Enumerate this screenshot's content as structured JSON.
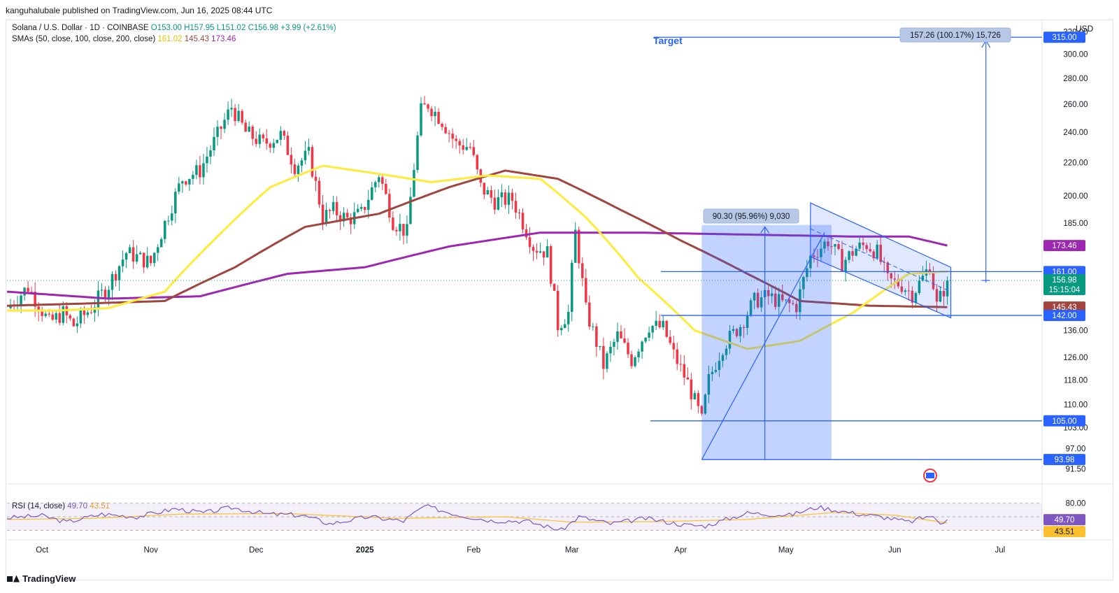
{
  "publisher": "kanguhalubale published on TradingView.com, Jun 16, 2025 08:44 UTC",
  "currency": "USD",
  "brand": "TradingView",
  "symbol_line": "Solana / U.S. Dollar · 1D · COINBASE",
  "ohlc": {
    "o": "O153.00",
    "h": "H157.95",
    "l": "L151.02",
    "c": "C156.98",
    "chg": "+3.99 (+2.61%)"
  },
  "sma_line": "SMAs (50, close, 100, close, 200, close)",
  "sma_values": [
    "161.02",
    "145.43",
    "173.46"
  ],
  "rsi_line": "RSI (14, close)",
  "rsi_values": [
    "49.70",
    "43.51"
  ],
  "colors": {
    "up": "#089981",
    "down": "#f23645",
    "sma50": "#ffeb3b",
    "sma100": "#a1453e",
    "sma200": "#9c27b0",
    "line": "#2962ff",
    "rsi": "#7e57c2",
    "rsi_ma": "#fbc02d"
  },
  "chart_data": {
    "type": "candlestick",
    "y_scale": "log",
    "ylim": [
      88,
      330
    ],
    "y_ticks": [
      "320.00",
      "300.00",
      "280.00",
      "260.00",
      "240.00",
      "220.00",
      "200.00",
      "185.00",
      "136.00",
      "126.00",
      "118.00",
      "110.00",
      "103.00",
      "97.00",
      "91.50"
    ],
    "x_ticks": [
      {
        "label": "Oct",
        "date": "2024-10-01"
      },
      {
        "label": "Nov",
        "date": "2024-11-01"
      },
      {
        "label": "Dec",
        "date": "2024-12-01"
      },
      {
        "label": "2025",
        "date": "2025-01-01"
      },
      {
        "label": "Feb",
        "date": "2025-02-01"
      },
      {
        "label": "Mar",
        "date": "2025-03-01"
      },
      {
        "label": "Apr",
        "date": "2025-04-01"
      },
      {
        "label": "May",
        "date": "2025-05-01"
      },
      {
        "label": "Jun",
        "date": "2025-06-01"
      },
      {
        "label": "Jul",
        "date": "2025-07-01"
      }
    ],
    "x_range": [
      "2024-09-21",
      "2025-07-13"
    ],
    "close_path": [
      [
        "2024-09-21",
        145
      ],
      [
        "2024-09-27",
        154
      ],
      [
        "2024-10-03",
        139
      ],
      [
        "2024-10-07",
        143
      ],
      [
        "2024-10-10",
        138
      ],
      [
        "2024-10-15",
        145
      ],
      [
        "2024-10-20",
        155
      ],
      [
        "2024-10-25",
        170
      ],
      [
        "2024-11-01",
        165
      ],
      [
        "2024-11-06",
        190
      ],
      [
        "2024-11-10",
        210
      ],
      [
        "2024-11-15",
        215
      ],
      [
        "2024-11-20",
        238
      ],
      [
        "2024-11-24",
        258
      ],
      [
        "2024-11-28",
        240
      ],
      [
        "2024-12-03",
        232
      ],
      [
        "2024-12-08",
        238
      ],
      [
        "2024-12-12",
        218
      ],
      [
        "2024-12-16",
        225
      ],
      [
        "2024-12-20",
        188
      ],
      [
        "2024-12-23",
        192
      ],
      [
        "2024-12-27",
        187
      ],
      [
        "2024-12-31",
        190
      ],
      [
        "2025-01-05",
        213
      ],
      [
        "2025-01-09",
        186
      ],
      [
        "2025-01-13",
        180
      ],
      [
        "2025-01-17",
        255
      ],
      [
        "2025-01-19",
        260
      ],
      [
        "2025-01-23",
        248
      ],
      [
        "2025-01-27",
        232
      ],
      [
        "2025-01-31",
        230
      ],
      [
        "2025-02-03",
        205
      ],
      [
        "2025-02-07",
        197
      ],
      [
        "2025-02-12",
        198
      ],
      [
        "2025-02-18",
        173
      ],
      [
        "2025-02-22",
        170
      ],
      [
        "2025-02-25",
        138
      ],
      [
        "2025-02-28",
        143
      ],
      [
        "2025-03-02",
        180
      ],
      [
        "2025-03-05",
        144
      ],
      [
        "2025-03-10",
        123
      ],
      [
        "2025-03-14",
        134
      ],
      [
        "2025-03-18",
        125
      ],
      [
        "2025-03-23",
        138
      ],
      [
        "2025-03-27",
        137
      ],
      [
        "2025-03-30",
        127
      ],
      [
        "2025-04-03",
        117
      ],
      [
        "2025-04-07",
        105
      ],
      [
        "2025-04-09",
        118
      ],
      [
        "2025-04-13",
        130
      ],
      [
        "2025-04-18",
        138
      ],
      [
        "2025-04-22",
        148
      ],
      [
        "2025-04-26",
        150
      ],
      [
        "2025-04-30",
        147
      ],
      [
        "2025-05-04",
        146
      ],
      [
        "2025-05-08",
        168
      ],
      [
        "2025-05-13",
        176
      ],
      [
        "2025-05-17",
        165
      ],
      [
        "2025-05-21",
        172
      ],
      [
        "2025-05-24",
        174
      ],
      [
        "2025-05-27",
        170
      ],
      [
        "2025-05-30",
        157
      ],
      [
        "2025-06-03",
        155
      ],
      [
        "2025-06-06",
        151
      ],
      [
        "2025-06-09",
        158
      ],
      [
        "2025-06-11",
        164
      ],
      [
        "2025-06-13",
        146
      ],
      [
        "2025-06-15",
        153
      ],
      [
        "2025-06-16",
        156.98
      ]
    ],
    "sma50": [
      [
        "2024-09-21",
        144
      ],
      [
        "2024-10-05",
        144
      ],
      [
        "2024-10-20",
        145
      ],
      [
        "2024-11-05",
        152
      ],
      [
        "2024-11-20",
        178
      ],
      [
        "2024-12-05",
        205
      ],
      [
        "2024-12-20",
        218
      ],
      [
        "2025-01-05",
        213
      ],
      [
        "2025-01-20",
        208
      ],
      [
        "2025-02-05",
        212
      ],
      [
        "2025-02-20",
        210
      ],
      [
        "2025-03-05",
        188
      ],
      [
        "2025-03-20",
        158
      ],
      [
        "2025-04-05",
        136
      ],
      [
        "2025-04-20",
        129
      ],
      [
        "2025-05-05",
        132
      ],
      [
        "2025-05-20",
        143
      ],
      [
        "2025-06-05",
        160
      ],
      [
        "2025-06-16",
        161.02
      ]
    ],
    "sma100": [
      [
        "2024-09-21",
        146
      ],
      [
        "2024-10-15",
        147
      ],
      [
        "2024-11-05",
        148
      ],
      [
        "2024-11-25",
        163
      ],
      [
        "2024-12-15",
        183
      ],
      [
        "2025-01-05",
        190
      ],
      [
        "2025-01-25",
        205
      ],
      [
        "2025-02-10",
        215
      ],
      [
        "2025-02-25",
        210
      ],
      [
        "2025-03-15",
        192
      ],
      [
        "2025-04-01",
        176
      ],
      [
        "2025-04-20",
        160
      ],
      [
        "2025-05-05",
        148
      ],
      [
        "2025-05-25",
        146
      ],
      [
        "2025-06-16",
        145.43
      ]
    ],
    "sma200": [
      [
        "2024-09-21",
        152
      ],
      [
        "2024-10-20",
        149
      ],
      [
        "2024-11-15",
        150
      ],
      [
        "2024-12-10",
        160
      ],
      [
        "2025-01-01",
        163
      ],
      [
        "2025-01-25",
        173
      ],
      [
        "2025-02-20",
        180
      ],
      [
        "2025-03-20",
        180
      ],
      [
        "2025-04-20",
        179
      ],
      [
        "2025-05-20",
        178
      ],
      [
        "2025-06-05",
        178
      ],
      [
        "2025-06-16",
        173.46
      ]
    ],
    "price_labels": [
      {
        "text": "315.00",
        "value": 315,
        "kind": "line"
      },
      {
        "text": "173.46",
        "value": 173.46,
        "kind": "sma200"
      },
      {
        "text": "161.02",
        "value": 161.02,
        "kind": "sma50"
      },
      {
        "text": "161.00",
        "value": 161,
        "kind": "line"
      },
      {
        "text": "156.98",
        "value": 156.98,
        "kind": "price",
        "sub": "15:15:04"
      },
      {
        "text": "145.43",
        "value": 145.43,
        "kind": "sma100"
      },
      {
        "text": "142.00",
        "value": 142,
        "kind": "line"
      },
      {
        "text": "105.00",
        "value": 105,
        "kind": "line"
      },
      {
        "text": "93.98",
        "value": 93.98,
        "kind": "line"
      }
    ],
    "annotations": {
      "target_label": "Target",
      "target_measure": "157.26 (100.17%) 15,726",
      "range_measure": "90.30 (95.96%) 9,030"
    },
    "rsi": {
      "ticks": [
        "80.00"
      ],
      "ylim": [
        20,
        90
      ],
      "rsi_path": [
        [
          "2024-09-21",
          53
        ],
        [
          "2024-10-01",
          57
        ],
        [
          "2024-10-08",
          45
        ],
        [
          "2024-10-18",
          60
        ],
        [
          "2024-10-28",
          55
        ],
        [
          "2024-11-08",
          70
        ],
        [
          "2024-11-16",
          62
        ],
        [
          "2024-11-24",
          72
        ],
        [
          "2024-12-04",
          60
        ],
        [
          "2024-12-14",
          58
        ],
        [
          "2024-12-22",
          42
        ],
        [
          "2025-01-02",
          55
        ],
        [
          "2025-01-12",
          47
        ],
        [
          "2025-01-18",
          75
        ],
        [
          "2025-01-28",
          58
        ],
        [
          "2025-02-06",
          48
        ],
        [
          "2025-02-16",
          47
        ],
        [
          "2025-02-26",
          30
        ],
        [
          "2025-03-03",
          55
        ],
        [
          "2025-03-12",
          42
        ],
        [
          "2025-03-22",
          52
        ],
        [
          "2025-04-02",
          40
        ],
        [
          "2025-04-08",
          38
        ],
        [
          "2025-04-20",
          62
        ],
        [
          "2025-05-02",
          58
        ],
        [
          "2025-05-10",
          73
        ],
        [
          "2025-05-20",
          62
        ],
        [
          "2025-05-30",
          53
        ],
        [
          "2025-06-05",
          45
        ],
        [
          "2025-06-11",
          57
        ],
        [
          "2025-06-14",
          44
        ],
        [
          "2025-06-16",
          49.7
        ]
      ],
      "ma_path": [
        [
          "2024-09-21",
          50
        ],
        [
          "2024-10-15",
          52
        ],
        [
          "2024-11-10",
          60
        ],
        [
          "2024-12-10",
          61
        ],
        [
          "2025-01-10",
          52
        ],
        [
          "2025-02-10",
          55
        ],
        [
          "2025-03-01",
          45
        ],
        [
          "2025-03-25",
          46
        ],
        [
          "2025-04-20",
          50
        ],
        [
          "2025-05-15",
          63
        ],
        [
          "2025-06-01",
          58
        ],
        [
          "2025-06-16",
          43.51
        ]
      ]
    }
  }
}
